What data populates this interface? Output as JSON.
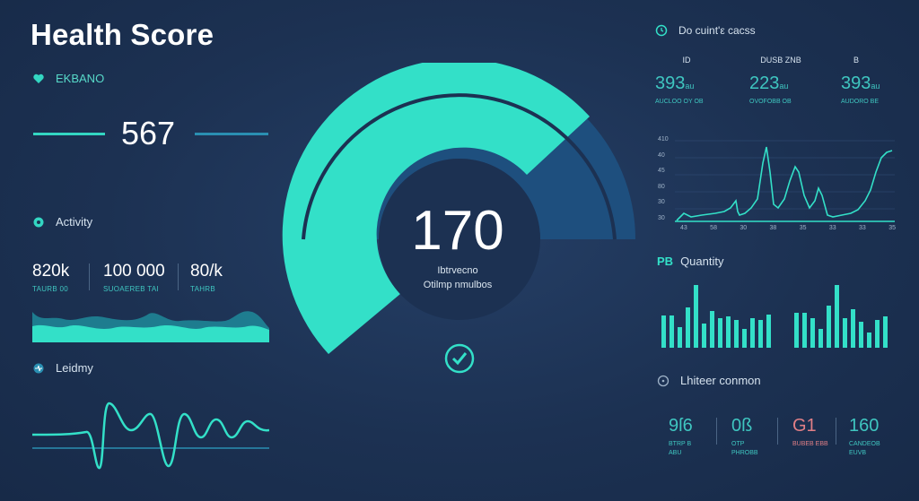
{
  "header": {
    "title": "Health Score"
  },
  "left": {
    "top_section": {
      "label": "EKBANO",
      "value": "567"
    },
    "activity": {
      "label": "Activity",
      "stats": [
        {
          "value": "820k",
          "sub": "TAURB 00"
        },
        {
          "value": "100 000",
          "sub": "SUOAEREB TAI"
        },
        {
          "value": "80/k",
          "sub": "TAHRB"
        }
      ]
    },
    "bottom_section": {
      "label": "Leidmy"
    }
  },
  "gauge": {
    "value": "170",
    "sub1": "Ibtrvecno",
    "sub2": "Otilmp nmulbos",
    "fill_fraction": 0.78
  },
  "right": {
    "metrics": {
      "heading": "Do cuint'ε cacss",
      "stats": [
        {
          "icon_label": "ID",
          "value": "393",
          "unit": "au",
          "sub": "AUCLOO OY OB"
        },
        {
          "icon_label": "DUSB ZNB",
          "value": "223",
          "unit": "au",
          "sub": "OVOFOBB OB"
        },
        {
          "icon_label": "B",
          "value": "393",
          "unit": "au",
          "sub": "AUDORO BE"
        }
      ],
      "y_ticks": [
        "410",
        "40",
        "45",
        "80",
        "30",
        "30"
      ],
      "x_ticks": [
        "43",
        "58",
        "30",
        "38",
        "35",
        "33",
        "33",
        "35"
      ]
    },
    "quantity": {
      "label": "Quantity",
      "prefix": "PB"
    },
    "bottom": {
      "heading": "Lhiteer conmon",
      "stats": [
        {
          "value": "9ſ6",
          "sub": "BTRP B ABU",
          "color": "#3fc6c0"
        },
        {
          "value": "0ß",
          "sub": "OTP PHROBB",
          "color": "#3fc6c0"
        },
        {
          "value": "G1",
          "sub": "BUBEB EBB",
          "color": "#e07f86"
        },
        {
          "value": "160",
          "sub": "CANDEOB EUVB",
          "color": "#3fc6c0"
        }
      ]
    }
  },
  "colors": {
    "teal": "#33e0c8",
    "navy_fill": "#1e4f7e",
    "bg": "#1c3152",
    "accent_red": "#e07f86"
  }
}
